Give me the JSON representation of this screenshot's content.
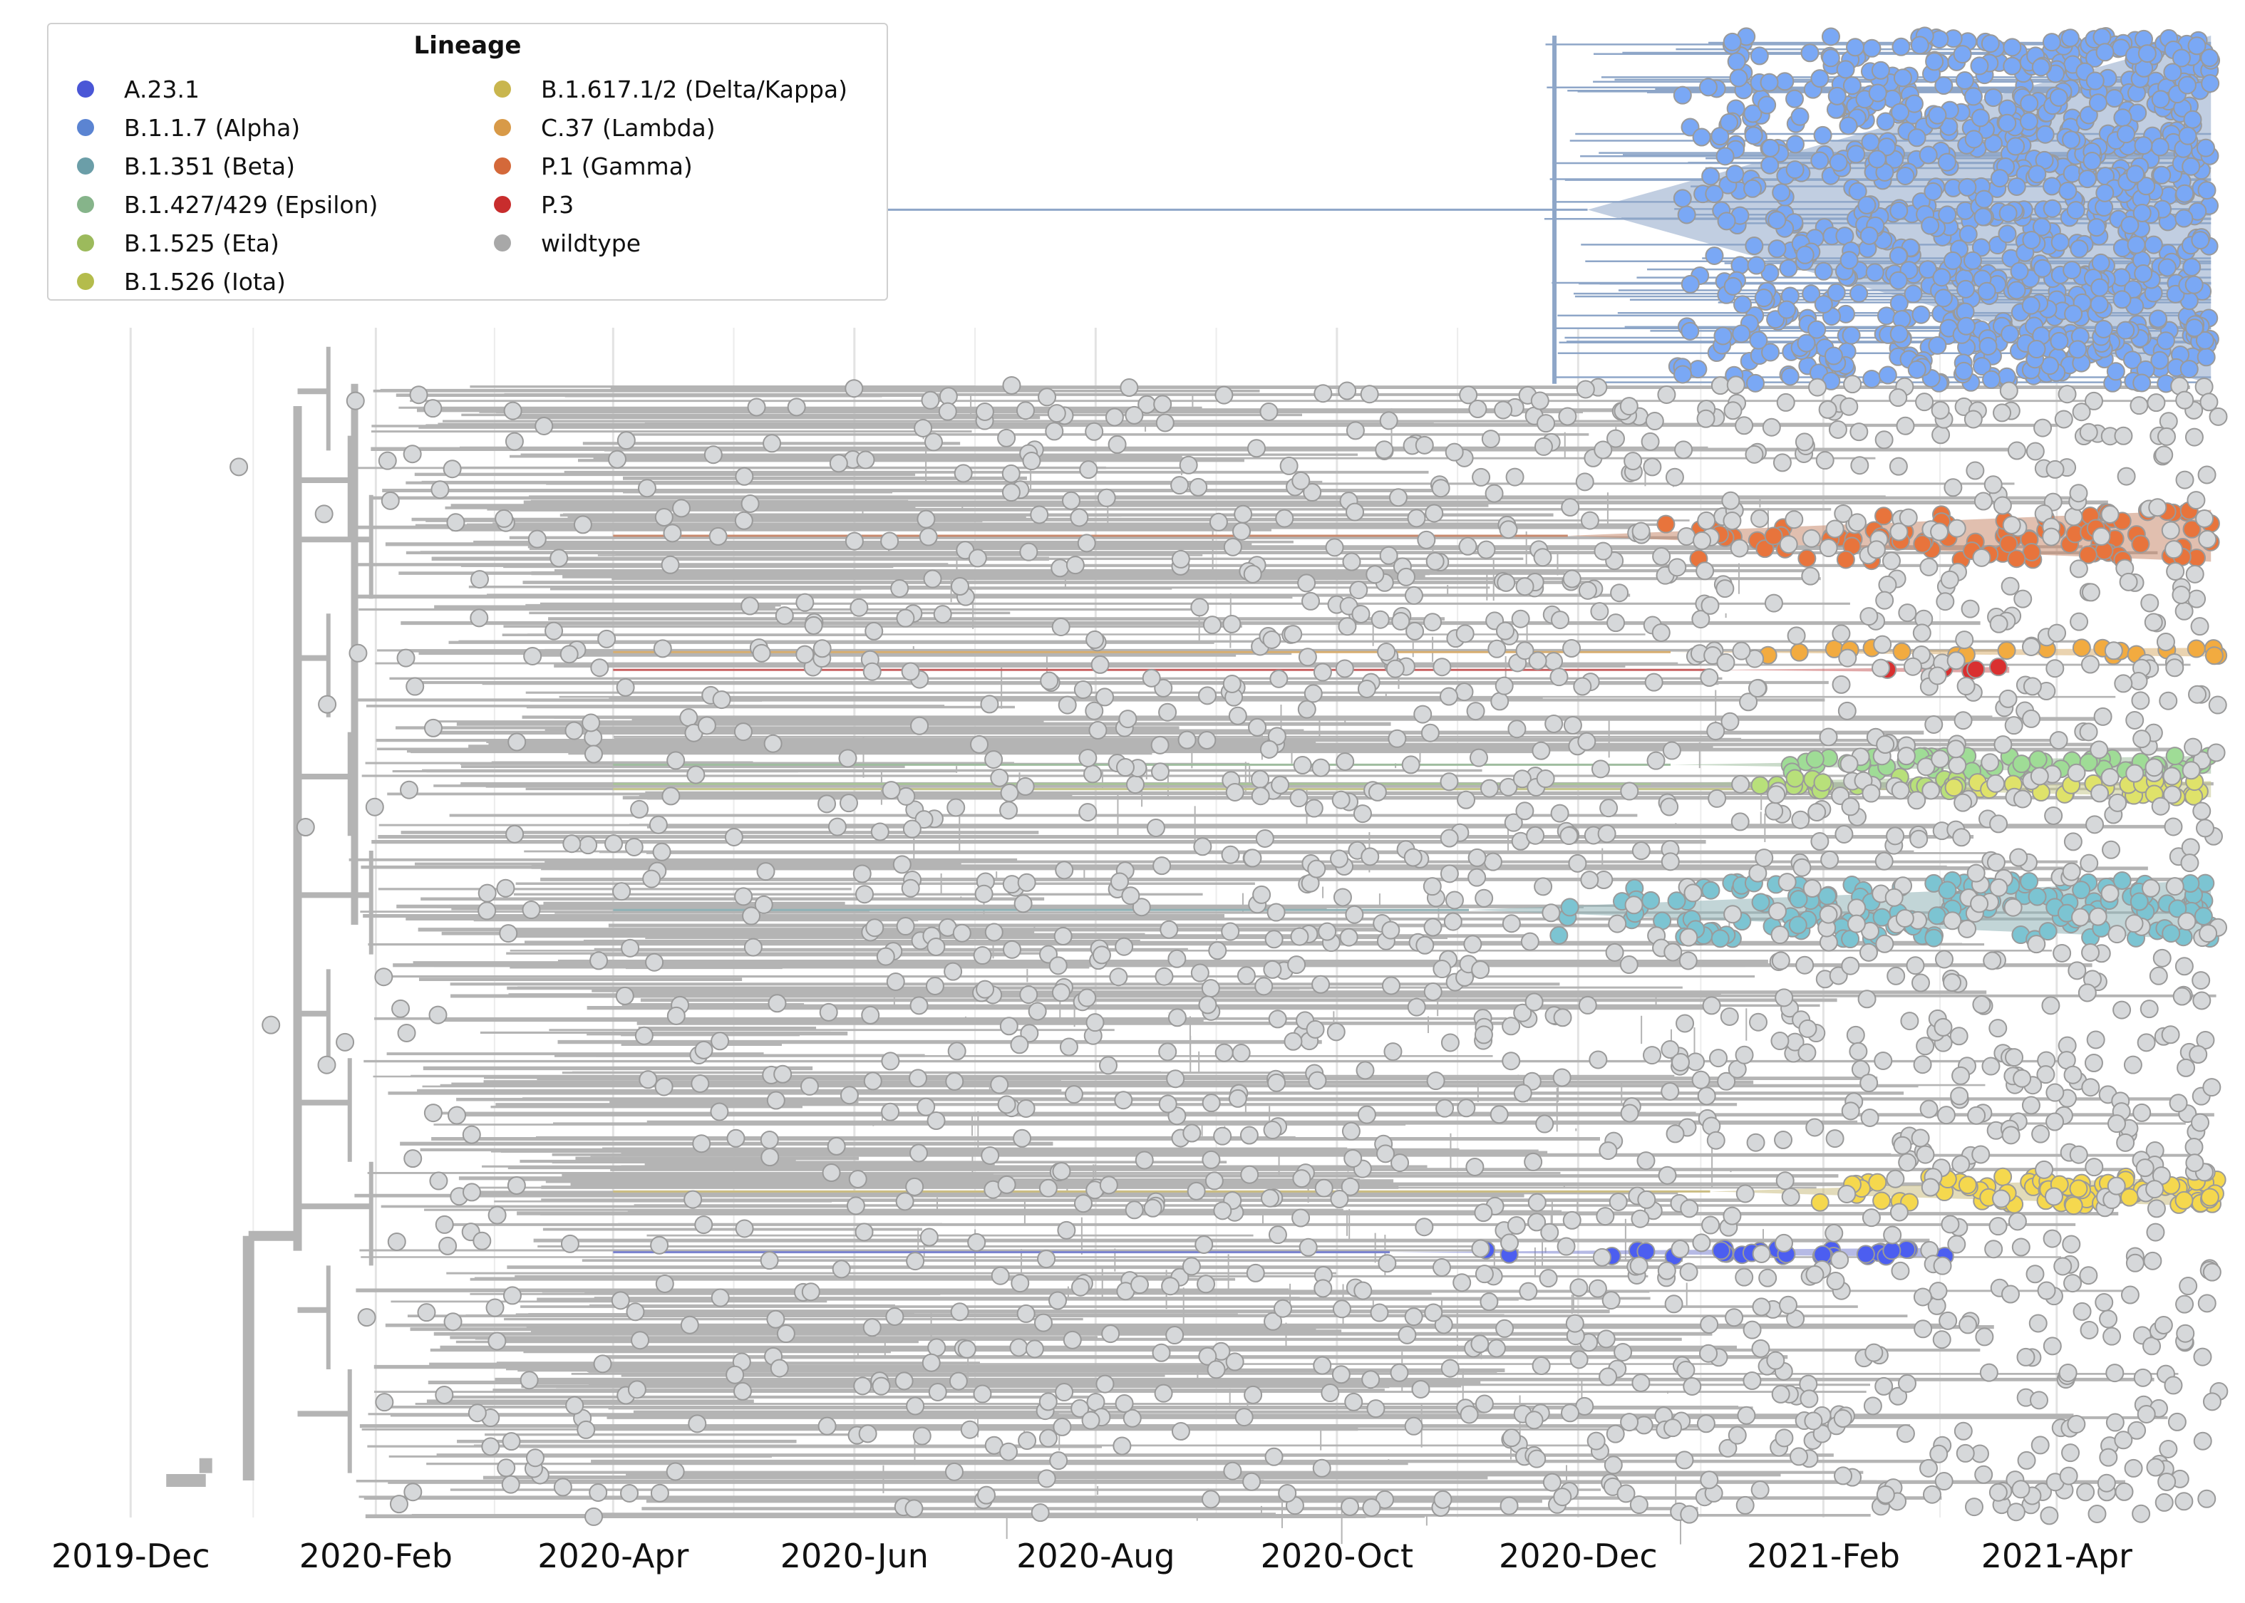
{
  "chart_data": {
    "type": "scatter",
    "subtype": "time-scaled phylogenetic tree",
    "title": "",
    "xlabel": "",
    "ylabel": "",
    "x_axis": {
      "type": "date",
      "range": [
        "2019-11-25",
        "2021-05-15"
      ],
      "ticks": [
        "2019-Dec",
        "2020-Feb",
        "2020-Apr",
        "2020-Jun",
        "2020-Aug",
        "2020-Oct",
        "2020-Dec",
        "2021-Feb",
        "2021-Apr"
      ],
      "tick_dates": [
        "2019-12-01",
        "2020-02-01",
        "2020-04-01",
        "2020-06-01",
        "2020-08-01",
        "2020-10-01",
        "2020-12-01",
        "2021-02-01",
        "2021-04-01"
      ]
    },
    "grid": {
      "vertical": true,
      "horizontal": false
    },
    "legend": {
      "title": "Lineage",
      "placement": "top-left",
      "columns": 2,
      "entries": [
        {
          "name": "A.23.1",
          "color": "#4a56d6"
        },
        {
          "name": "B.1.1.7 (Alpha)",
          "color": "#5b84d2"
        },
        {
          "name": "B.1.351 (Beta)",
          "color": "#6b9ea8"
        },
        {
          "name": "B.1.427/429 (Epsilon)",
          "color": "#86b48a"
        },
        {
          "name": "B.1.525 (Eta)",
          "color": "#9cba5c"
        },
        {
          "name": "B.1.526 (Iota)",
          "color": "#b4bc4c"
        },
        {
          "name": "B.1.617.1/2 (Delta/Kappa)",
          "color": "#c9b64e"
        },
        {
          "name": "C.37 (Lambda)",
          "color": "#d89a48"
        },
        {
          "name": "P.1 (Gamma)",
          "color": "#d4693a"
        },
        {
          "name": "P.3",
          "color": "#c82d2d"
        },
        {
          "name": "wildtype",
          "color": "#a8a8a8"
        }
      ]
    },
    "series": [
      {
        "name": "B.1.1.7 (Alpha)",
        "point_color": "#7aa8f5",
        "branch_color": "#8ea6c8",
        "date_range": [
          "2020-12-25",
          "2021-05-10"
        ],
        "row_range": [
          0.0,
          0.235
        ],
        "approx_points": 900
      },
      {
        "name": "P.1 (Gamma)",
        "point_color": "#e8743c",
        "branch_color": "#c98a6e",
        "date_range": [
          "2020-12-20",
          "2021-05-10"
        ],
        "row_range": [
          0.32,
          0.355
        ],
        "approx_points": 90
      },
      {
        "name": "C.37 (Lambda)",
        "point_color": "#f2ab40",
        "branch_color": "#d8ae70",
        "date_range": [
          "2021-01-15",
          "2021-05-12"
        ],
        "row_range": [
          0.413,
          0.419
        ],
        "approx_points": 20
      },
      {
        "name": "P.3",
        "point_color": "#d93030",
        "branch_color": "#c86060",
        "date_range": [
          "2021-01-25",
          "2021-03-20"
        ],
        "row_range": [
          0.426,
          0.43
        ],
        "approx_points": 5
      },
      {
        "name": "B.1.427/429 (Epsilon)",
        "point_color": "#9fdc96",
        "branch_color": "#9fbd9f",
        "date_range": [
          "2021-01-15",
          "2021-05-10"
        ],
        "row_range": [
          0.486,
          0.498
        ],
        "approx_points": 60
      },
      {
        "name": "B.1.525 (Eta)",
        "point_color": "#b8e07a",
        "branch_color": "#a9c49a",
        "date_range": [
          "2021-01-10",
          "2021-03-10"
        ],
        "row_range": [
          0.5,
          0.51
        ],
        "approx_points": 25
      },
      {
        "name": "B.1.526 (Iota)",
        "point_color": "#dfe26a",
        "branch_color": "#c6c88e",
        "date_range": [
          "2021-03-01",
          "2021-05-10"
        ],
        "row_range": [
          0.503,
          0.514
        ],
        "approx_points": 30
      },
      {
        "name": "B.1.351 (Beta)",
        "point_color": "#7cc4d2",
        "branch_color": "#8fb2b6",
        "date_range": [
          "2020-11-25",
          "2021-05-10"
        ],
        "row_range": [
          0.57,
          0.61
        ],
        "approx_points": 160
      },
      {
        "name": "B.1.617.1/2 (Delta/Kappa)",
        "point_color": "#f5d84e",
        "branch_color": "#cbbd82",
        "date_range": [
          "2021-01-25",
          "2021-05-12"
        ],
        "row_range": [
          0.77,
          0.79
        ],
        "approx_points": 80
      },
      {
        "name": "A.23.1",
        "point_color": "#4c5ef0",
        "branch_color": "#7a82cf",
        "date_range": [
          "2020-11-05",
          "2021-03-05"
        ],
        "row_range": [
          0.818,
          0.824
        ],
        "approx_points": 30
      },
      {
        "name": "wildtype",
        "point_color": "#d6d8da",
        "branch_color": "#b4b4b4",
        "date_range": [
          "2019-12-25",
          "2021-05-12"
        ],
        "row_range": [
          0.235,
          1.0
        ],
        "approx_points": 1800
      }
    ]
  }
}
